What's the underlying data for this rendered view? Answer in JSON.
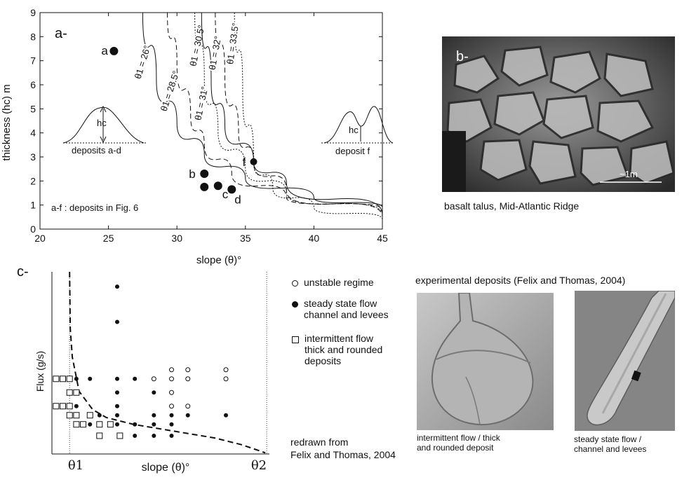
{
  "panel_a": {
    "label": "a-",
    "note": "a-f : deposits in Fig. 6",
    "inset_left_label": "deposits a-d",
    "inset_left_h": "hc",
    "inset_right_label": "deposit  f",
    "inset_right_h": "hc",
    "curve_labels": [
      "θ1 = 26°",
      "θ1 = 28.5°",
      "θ1 = 30.5°",
      "θ1 = 31°",
      "θ1 = 32°",
      "θ1 = 33.5°"
    ]
  },
  "panel_b": {
    "label": "b-",
    "scale_label": "~1m",
    "caption": "basalt talus, Mid-Atlantic Ridge"
  },
  "panel_c": {
    "label": "c-",
    "xlabel": "slope (θ)°",
    "ylabel": "Flux (g/s)",
    "theta1": "θ1",
    "theta2": "θ2",
    "legend": [
      {
        "marker": "open-circle",
        "text": "unstable regime"
      },
      {
        "marker": "filled-circle",
        "text": "steady state flow\nchannel and levees"
      },
      {
        "marker": "open-square",
        "text": "intermittent flow\nthick and rounded\ndeposits"
      }
    ],
    "source_note": "redrawn from\nFelix and Thomas, 2004"
  },
  "panel_d": {
    "title": "experimental deposits (Felix and Thomas, 2004)",
    "caption_left": "intermittent flow / thick\nand rounded deposit",
    "caption_right": "steady state flow /\nchannel and levees"
  },
  "chart_data": [
    {
      "type": "line",
      "xlabel": "slope (θ)°",
      "ylabel": "thickness (hc) m",
      "xlim": [
        20,
        45
      ],
      "ylim": [
        0,
        9
      ],
      "xticks": [
        20,
        25,
        30,
        35,
        40,
        45
      ],
      "yticks": [
        0,
        1,
        2,
        3,
        4,
        5,
        6,
        7,
        8,
        9
      ],
      "series": [
        {
          "name": "θ1 = 26°",
          "style": "solid",
          "asymptote": 26,
          "x": [
            27.5,
            28.5,
            30,
            32,
            35,
            40,
            45
          ],
          "y": [
            9.0,
            6.2,
            4.4,
            3.1,
            2.1,
            1.3,
            0.9
          ]
        },
        {
          "name": "θ1 = 28.5°",
          "style": "dashed",
          "asymptote": 28.5,
          "x": [
            29.3,
            30,
            31,
            32,
            34,
            38,
            45
          ],
          "y": [
            9.0,
            6.9,
            4.7,
            3.5,
            2.3,
            1.3,
            0.8
          ]
        },
        {
          "name": "θ1 = 30.5°",
          "style": "dotted",
          "asymptote": 30.5,
          "x": [
            31.3,
            32,
            33,
            35,
            38,
            45
          ],
          "y": [
            9.0,
            6.3,
            4.1,
            2.5,
            1.5,
            0.6
          ]
        },
        {
          "name": "θ1 = 31°",
          "style": "solid",
          "asymptote": 31,
          "x": [
            31.8,
            32.5,
            33.5,
            35.6,
            38,
            45
          ],
          "y": [
            9.0,
            6.1,
            4.3,
            2.8,
            1.9,
            0.6
          ]
        },
        {
          "name": "θ1 = 32°",
          "style": "dashed",
          "asymptote": 32,
          "x": [
            32.8,
            33.5,
            34.5,
            35.6,
            38,
            45
          ],
          "y": [
            9.0,
            6.3,
            4.0,
            2.8,
            1.6,
            0.5
          ]
        },
        {
          "name": "θ1 = 33.5°",
          "style": "dotted",
          "asymptote": 33.5,
          "x": [
            34.2,
            34.8,
            35.6,
            37,
            40,
            45
          ],
          "y": [
            9.0,
            5.8,
            2.8,
            1.7,
            0.9,
            0.4
          ]
        }
      ],
      "points": [
        {
          "label": "a",
          "x": 25.4,
          "y": 7.4
        },
        {
          "label": "b",
          "x": 32.0,
          "y": 2.3
        },
        {
          "label": "",
          "x": 32.0,
          "y": 1.75
        },
        {
          "label": "c",
          "x": 33.0,
          "y": 1.8
        },
        {
          "label": "d",
          "x": 34.0,
          "y": 1.65
        },
        {
          "label": "f",
          "x": 35.6,
          "y": 2.8
        }
      ]
    },
    {
      "type": "scatter",
      "xlabel": "slope (θ)°",
      "ylabel": "Flux (g/s)",
      "xticks": [
        "θ1",
        "θ2"
      ],
      "x_range": [
        0,
        16
      ],
      "y_range": [
        0,
        16
      ],
      "boundary": {
        "x": [
          1.3,
          1.35,
          1.5,
          2,
          3,
          4,
          6,
          8,
          10,
          12,
          14,
          15.7
        ],
        "y": [
          16,
          11,
          8.5,
          5.5,
          3.9,
          3.2,
          2.6,
          2.2,
          1.8,
          1.4,
          0.8,
          0.1
        ]
      },
      "series": [
        {
          "name": "unstable regime",
          "marker": "open-circle",
          "points": [
            [
              7.5,
              6.6
            ],
            [
              8.8,
              6.6
            ],
            [
              8.8,
              7.4
            ],
            [
              8.8,
              5.4
            ],
            [
              10,
              7.4
            ],
            [
              10,
              6.6
            ],
            [
              12.8,
              7.4
            ],
            [
              12.8,
              6.6
            ],
            [
              8.8,
              4.2
            ],
            [
              10,
              4.2
            ]
          ]
        },
        {
          "name": "steady state flow channel and levees",
          "marker": "filled-circle",
          "points": [
            [
              4.8,
              14.7
            ],
            [
              4.8,
              11.6
            ],
            [
              1.8,
              6.6
            ],
            [
              1.8,
              5.4
            ],
            [
              1.8,
              4.2
            ],
            [
              2.8,
              6.6
            ],
            [
              4.8,
              6.6
            ],
            [
              6.1,
              6.6
            ],
            [
              4.8,
              5.4
            ],
            [
              7.5,
              5.4
            ],
            [
              4.8,
              4.2
            ],
            [
              4.8,
              3.4
            ],
            [
              3.5,
              3.4
            ],
            [
              4.8,
              2.6
            ],
            [
              6.1,
              2.6
            ],
            [
              7.5,
              2.6
            ],
            [
              8.8,
              2.6
            ],
            [
              7.5,
              3.4
            ],
            [
              8.8,
              3.4
            ],
            [
              10,
              3.4
            ],
            [
              12.8,
              3.4
            ],
            [
              6.1,
              1.6
            ],
            [
              7.5,
              1.6
            ],
            [
              8.8,
              1.6
            ],
            [
              2.8,
              2.6
            ],
            [
              1.8,
              2.6
            ]
          ]
        },
        {
          "name": "intermittent flow thick and rounded deposits",
          "marker": "open-square",
          "points": [
            [
              0.3,
              6.6
            ],
            [
              0.8,
              6.6
            ],
            [
              1.3,
              6.6
            ],
            [
              1.3,
              5.4
            ],
            [
              1.8,
              5.4
            ],
            [
              0.3,
              4.2
            ],
            [
              0.8,
              4.2
            ],
            [
              1.3,
              4.2
            ],
            [
              1.3,
              3.4
            ],
            [
              1.8,
              3.4
            ],
            [
              2.8,
              3.4
            ],
            [
              1.8,
              2.6
            ],
            [
              2.3,
              2.6
            ],
            [
              3.5,
              2.6
            ],
            [
              4.3,
              2.6
            ],
            [
              3.5,
              1.6
            ],
            [
              5.0,
              1.6
            ]
          ]
        }
      ]
    }
  ]
}
